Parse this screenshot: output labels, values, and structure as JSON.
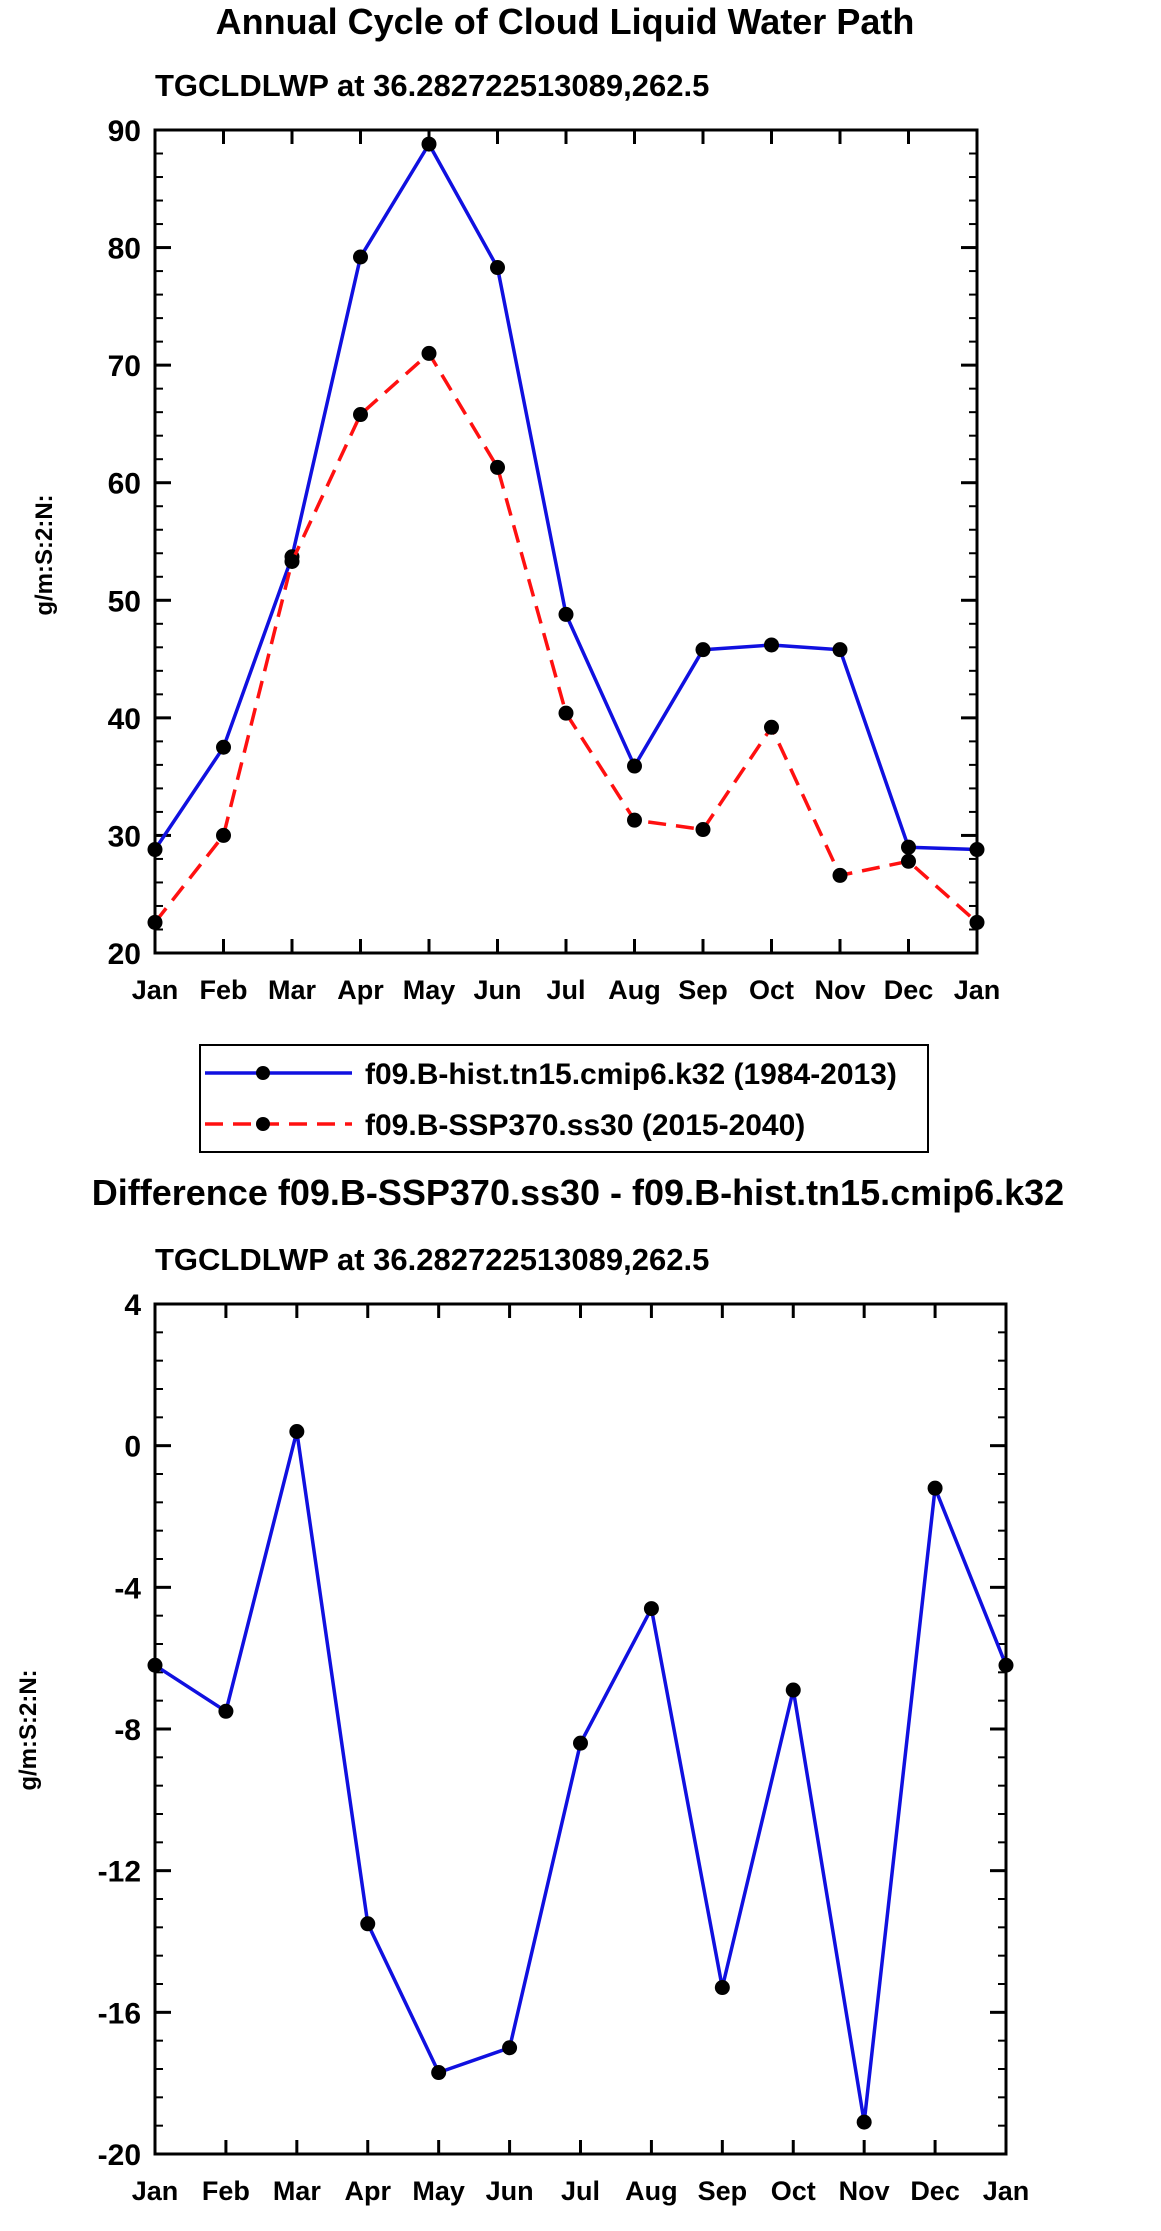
{
  "chart_data": [
    {
      "type": "line",
      "title": "Annual Cycle of Cloud Liquid Water Path",
      "subtitle": "TGCLDLWP at 36.282722513089,262.5",
      "xlabel": "",
      "ylabel": "g/m:S:2:N:",
      "categories": [
        "Jan",
        "Feb",
        "Mar",
        "Apr",
        "May",
        "Jun",
        "Jul",
        "Aug",
        "Sep",
        "Oct",
        "Nov",
        "Dec",
        "Jan"
      ],
      "yticks": [
        "20",
        "30",
        "40",
        "50",
        "60",
        "70",
        "80",
        "90"
      ],
      "ylim": [
        20,
        90
      ],
      "series": [
        {
          "name": "f09.B-hist.tn15.cmip6.k32 (1984-2013)",
          "color": "#1010e0",
          "dash": "solid",
          "values": [
            28.8,
            37.5,
            53.7,
            79.2,
            88.8,
            78.3,
            48.8,
            35.9,
            45.8,
            46.2,
            45.8,
            29.0,
            28.8
          ]
        },
        {
          "name": "f09.B-SSP370.ss30 (2015-2040)",
          "color": "#ff1010",
          "dash": "dashed",
          "values": [
            22.6,
            30.0,
            53.3,
            65.8,
            71.0,
            61.3,
            40.4,
            31.3,
            30.5,
            39.2,
            26.6,
            27.8,
            22.6
          ]
        }
      ]
    },
    {
      "type": "line",
      "title": "Difference f09.B-SSP370.ss30 - f09.B-hist.tn15.cmip6.k32",
      "subtitle": "TGCLDLWP at 36.282722513089,262.5",
      "xlabel": "",
      "ylabel": "g/m:S:2:N:",
      "categories": [
        "Jan",
        "Feb",
        "Mar",
        "Apr",
        "May",
        "Jun",
        "Jul",
        "Aug",
        "Sep",
        "Oct",
        "Nov",
        "Dec",
        "Jan"
      ],
      "yticks": [
        "4",
        "0",
        "-4",
        "-8",
        "-12",
        "-16",
        "-20"
      ],
      "ylim": [
        -20,
        4
      ],
      "series": [
        {
          "name": "difference",
          "color": "#1010e0",
          "dash": "solid",
          "values": [
            -6.2,
            -7.5,
            0.4,
            -13.5,
            -17.7,
            -17.0,
            -8.4,
            -4.6,
            -15.3,
            -6.9,
            -19.1,
            -1.2,
            -6.2
          ]
        }
      ]
    }
  ]
}
